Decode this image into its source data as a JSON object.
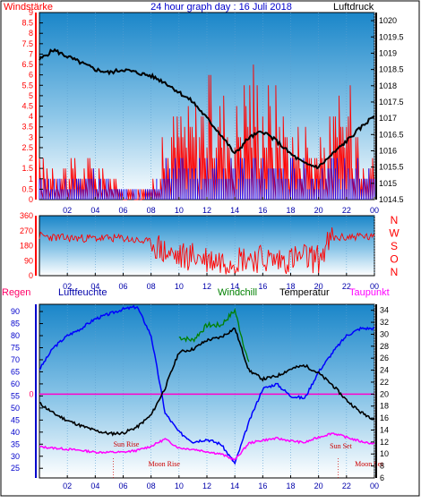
{
  "header": {
    "left_label": "Windstärke",
    "title": "24 hour graph day : 16 Juli 2018",
    "right_label": "Luftdruck"
  },
  "chart_data": [
    {
      "type": "line",
      "panel": "wind-pressure",
      "y_left": {
        "label": "Windstärke",
        "ticks": [
          "0",
          "0.5",
          "1",
          "1.5",
          "2",
          "2.5",
          "3",
          "3.5",
          "4",
          "4.5",
          "5",
          "5.5",
          "6",
          "6.5",
          "7",
          "7.5",
          "8",
          "8.5",
          "9"
        ],
        "range": [
          0,
          9
        ]
      },
      "y_right": {
        "label": "Luftdruck",
        "ticks": [
          "1014.5",
          "1015",
          "1015.5",
          "1016",
          "1016.5",
          "1017",
          "1017.5",
          "1018",
          "1018.5",
          "1019",
          "1019.5",
          "1020"
        ],
        "range": [
          1014.5,
          1020.25
        ]
      },
      "x_ticks": [
        "02",
        "04",
        "06",
        "08",
        "10",
        "12",
        "14",
        "16",
        "18",
        "20",
        "22",
        "00"
      ],
      "series": [
        {
          "name": "Luftdruck",
          "color": "#000000",
          "x": [
            0,
            1,
            2,
            3,
            4,
            5,
            6,
            7,
            8,
            9,
            10,
            11,
            12,
            13,
            14,
            15,
            16,
            17,
            18,
            19,
            20,
            21,
            22,
            23,
            24
          ],
          "y": [
            1018.8,
            1019.1,
            1018.9,
            1018.7,
            1018.5,
            1018.4,
            1018.5,
            1018.4,
            1018.3,
            1018.1,
            1017.8,
            1017.5,
            1017.0,
            1016.5,
            1015.9,
            1016.4,
            1016.6,
            1016.3,
            1015.9,
            1015.6,
            1015.5,
            1015.9,
            1016.3,
            1016.7,
            1017.1
          ]
        },
        {
          "name": "Windstärke",
          "color": "#ff0000",
          "x": [
            0,
            2,
            4,
            6,
            8,
            9,
            10,
            11,
            12,
            13,
            14,
            15,
            16,
            17,
            18,
            19,
            20,
            21,
            22,
            23,
            24
          ],
          "y": [
            1.5,
            1.5,
            1.5,
            0.5,
            0.5,
            2.5,
            3.5,
            3.5,
            4.5,
            4.0,
            3.5,
            5.5,
            4.5,
            4.0,
            3.0,
            3.0,
            2.0,
            3.5,
            4.0,
            3.5,
            1.5
          ]
        },
        {
          "name": "Windböen",
          "color": "#0000ff",
          "x": [
            0,
            2,
            4,
            6,
            8,
            9,
            10,
            11,
            12,
            13,
            14,
            15,
            16,
            17,
            18,
            19,
            20,
            21,
            22,
            23,
            24
          ],
          "y": [
            1.0,
            1.0,
            1.0,
            0.5,
            0.5,
            1.5,
            1.5,
            1.5,
            1.5,
            1.5,
            1.5,
            1.5,
            1.5,
            1.5,
            1.5,
            1.5,
            1.0,
            1.5,
            1.5,
            1.5,
            1.0
          ]
        }
      ]
    },
    {
      "type": "line",
      "panel": "wind-direction",
      "y_left": {
        "ticks": [
          "0",
          "90",
          "180",
          "270",
          "360"
        ],
        "range": [
          0,
          360
        ]
      },
      "y_right": {
        "ticks": [
          "N",
          "W",
          "S",
          "O",
          "N"
        ]
      },
      "x_ticks": [
        "02",
        "04",
        "06",
        "08",
        "10",
        "12",
        "14",
        "16",
        "18",
        "20",
        "22",
        "00"
      ],
      "series": [
        {
          "name": "Windrichtung",
          "color": "#ff0000",
          "x": [
            0,
            1,
            2,
            3,
            4,
            5,
            6,
            7,
            8,
            9,
            10,
            11,
            12,
            13,
            14,
            15,
            16,
            17,
            18,
            19,
            20,
            21,
            22,
            23,
            24
          ],
          "y": [
            240,
            230,
            225,
            225,
            225,
            225,
            225,
            210,
            200,
            140,
            110,
            120,
            100,
            90,
            100,
            110,
            100,
            90,
            100,
            110,
            100,
            225,
            230,
            240,
            225
          ]
        }
      ]
    },
    {
      "type": "line",
      "panel": "humidity-temperature",
      "legend": [
        "Regen",
        "Luftfeuchte",
        "Windchill",
        "Temperatur",
        "Taupunkt"
      ],
      "y_left": {
        "label": "Luftfeuchte",
        "ticks": [
          "25",
          "30",
          "35",
          "40",
          "45",
          "50",
          "55",
          "60",
          "65",
          "70",
          "75",
          "80",
          "85",
          "90"
        ],
        "range": [
          21,
          93
        ]
      },
      "y_mid": {
        "label": "Regen",
        "ticks": [
          "0"
        ]
      },
      "y_right": {
        "label": "Temperatur",
        "ticks": [
          "6",
          "8",
          "10",
          "12",
          "14",
          "16",
          "18",
          "20",
          "22",
          "24",
          "26",
          "28",
          "30",
          "32",
          "34"
        ],
        "range": [
          6,
          35
        ]
      },
      "x_ticks": [
        "02",
        "04",
        "06",
        "08",
        "10",
        "12",
        "14",
        "16",
        "18",
        "20",
        "22",
        "00"
      ],
      "annotations": [
        "Sun Rise",
        "Moon Rise",
        "Sun Set",
        "Moon Set"
      ],
      "series": [
        {
          "name": "Luftfeuchte",
          "color": "#0000ff",
          "axis": "left",
          "x": [
            0,
            1,
            2,
            3,
            4,
            5,
            6,
            7,
            8,
            9,
            10,
            11,
            12,
            13,
            14,
            15,
            16,
            17,
            18,
            19,
            20,
            21,
            22,
            23,
            24
          ],
          "y": [
            66,
            75,
            80,
            83,
            87,
            89,
            91,
            92,
            80,
            48,
            40,
            36,
            37,
            35,
            27,
            44,
            58,
            60,
            55,
            54,
            65,
            73,
            80,
            83,
            83
          ]
        },
        {
          "name": "Temperatur",
          "color": "#000000",
          "axis": "right",
          "x": [
            0,
            1,
            2,
            3,
            4,
            5,
            6,
            7,
            8,
            9,
            10,
            11,
            12,
            13,
            14,
            15,
            16,
            17,
            18,
            19,
            20,
            21,
            22,
            23,
            24
          ],
          "y": [
            18.5,
            16.8,
            15.6,
            14.7,
            13.9,
            13.4,
            13.5,
            14.5,
            16.5,
            21.0,
            27.0,
            27.5,
            29.0,
            29.5,
            31.0,
            24.0,
            22.5,
            23.0,
            24.2,
            24.8,
            23.5,
            21.5,
            19.0,
            17.0,
            15.8
          ]
        },
        {
          "name": "Windchill",
          "color": "#008000",
          "axis": "right",
          "x": [
            10,
            11,
            12,
            13,
            14,
            15
          ],
          "y": [
            29.5,
            29.0,
            31.5,
            31.5,
            34.0,
            25.0
          ]
        },
        {
          "name": "Taupunkt",
          "color": "#ff00ff",
          "axis": "right",
          "x": [
            0,
            1,
            2,
            3,
            4,
            5,
            6,
            7,
            8,
            9,
            10,
            11,
            12,
            13,
            14,
            15,
            16,
            17,
            18,
            19,
            20,
            21,
            22,
            23,
            24
          ],
          "y": [
            11.2,
            11.0,
            10.8,
            10.6,
            10.3,
            10.3,
            10.3,
            10.6,
            11.3,
            12.5,
            11.0,
            10.8,
            10.4,
            10.0,
            9.0,
            11.8,
            12.3,
            12.6,
            12.2,
            11.9,
            12.8,
            13.5,
            12.8,
            12.1,
            11.7
          ]
        }
      ]
    }
  ]
}
